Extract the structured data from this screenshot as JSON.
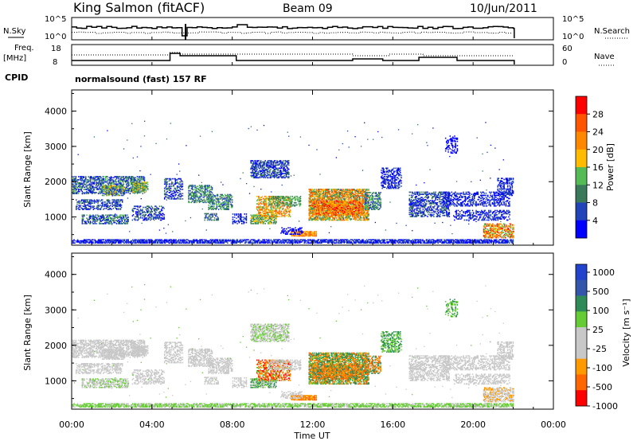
{
  "header": {
    "station": "King Salmon (fitACF)",
    "beam": "Beam 09",
    "date": "10/Jun/2011"
  },
  "top_panels": {
    "nsky_label": "N.Sky",
    "nsky_ticks": [
      "10^5",
      "10^0"
    ],
    "nsearch_label": "N.Search",
    "nsearch_ticks": [
      "10^5",
      "10^0"
    ],
    "freq_label": "Freq.",
    "freq_unit": "[MHz]",
    "freq_ticks": [
      "18",
      "8"
    ],
    "nave_label": "Nave",
    "nave_ticks": [
      "60",
      "0"
    ],
    "cpid_label": "CPID",
    "cpid_text": "normalsound (fast) 157 RF"
  },
  "chart_data": [
    {
      "type": "heatmap",
      "name": "power",
      "ylabel": "Slant Range [km]",
      "yticks": [
        "1000",
        "2000",
        "3000",
        "4000"
      ],
      "ylim": [
        200,
        4600
      ],
      "colorbar_label": "Power [dB]",
      "colorbar_ticks": [
        "4",
        "8",
        "12",
        "16",
        "20",
        "24",
        "28"
      ],
      "colors": [
        "#0000ff",
        "#2244bb",
        "#3a7a5a",
        "#55bb55",
        "#ffbb00",
        "#ff8800",
        "#ff5500",
        "#ff0000"
      ]
    },
    {
      "type": "heatmap",
      "name": "velocity",
      "ylabel": "Slant Range [km]",
      "yticks": [
        "1000",
        "2000",
        "3000",
        "4000"
      ],
      "ylim": [
        200,
        4600
      ],
      "colorbar_label": "Velocity [m s⁻¹]",
      "colorbar_ticks": [
        "1000",
        "500",
        "100",
        "25",
        "-25",
        "-100",
        "-500",
        "-1000"
      ],
      "colors": [
        "#2244cc",
        "#3355aa",
        "#2e8b57",
        "#66cc33",
        "#c8c8c8",
        "#c8c8c8",
        "#ff9900",
        "#ff6600",
        "#ff0000"
      ]
    }
  ],
  "xaxis": {
    "label": "Time UT",
    "ticks": [
      "00:00",
      "04:00",
      "08:00",
      "12:00",
      "16:00",
      "20:00",
      "00:00"
    ]
  }
}
